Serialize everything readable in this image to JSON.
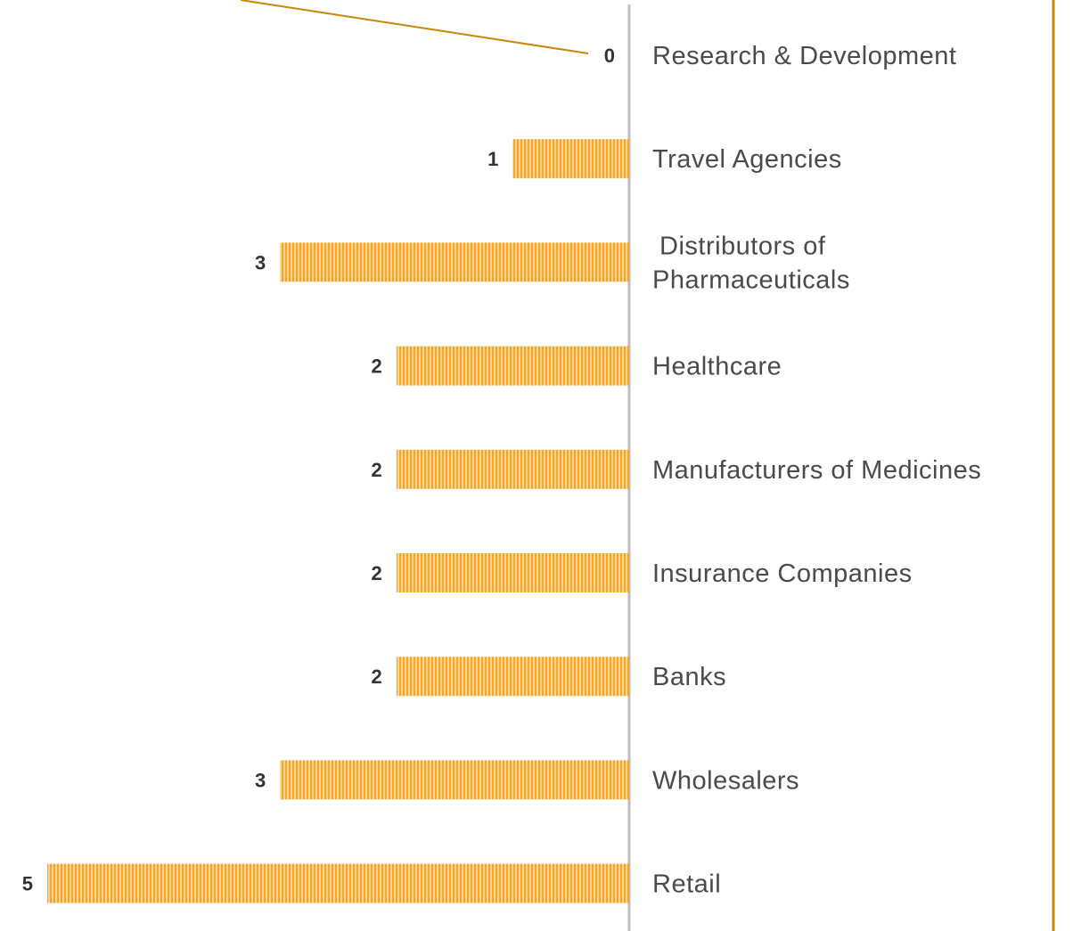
{
  "chart_data": {
    "type": "barh",
    "categories": [
      "Research & Development",
      "Travel Agencies",
      "Distributors of\nPharmaceuticals",
      "Healthcare",
      "Manufacturers of Medicines",
      "Insurance Companies",
      "Banks",
      "Wholesalers",
      "Retail"
    ],
    "values": [
      0,
      1,
      3,
      2,
      2,
      2,
      2,
      3,
      5
    ],
    "color": "#f5b040",
    "xlim": [
      0,
      5
    ]
  }
}
